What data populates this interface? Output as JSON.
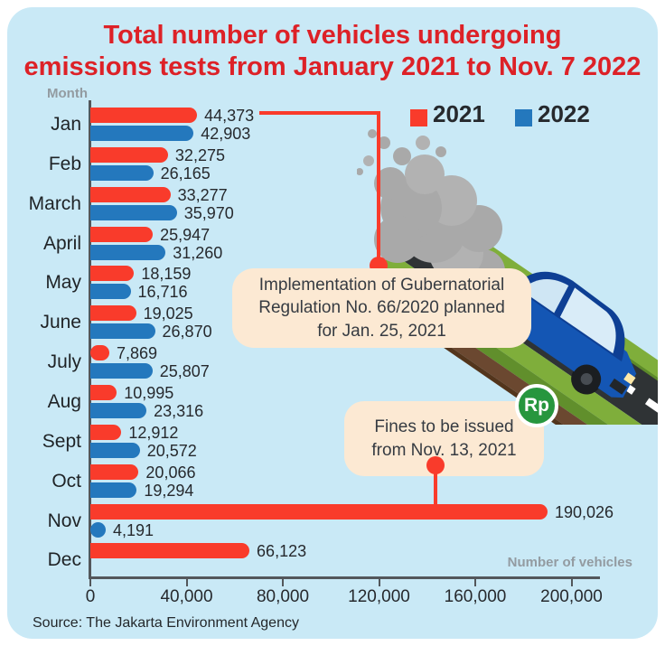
{
  "title": {
    "line1": "Total number of vehicles undergoing",
    "line2": "emissions tests from January 2021 to Nov. 7 2022"
  },
  "legend": {
    "items": [
      {
        "label": "2021",
        "color": "#f93b2b"
      },
      {
        "label": "2022",
        "color": "#2478bd"
      }
    ]
  },
  "axis": {
    "y_label": "Month",
    "x_label": "Number of vehicles",
    "ticks": [
      "0",
      "40,000",
      "80,000",
      "120,000",
      "160,000",
      "200,000"
    ]
  },
  "chart_data": {
    "type": "bar",
    "orientation": "horizontal",
    "title": "Total number of vehicles undergoing emissions tests from January 2021 to Nov. 7 2022",
    "xlabel": "Number of vehicles",
    "ylabel": "Month",
    "xlim": [
      0,
      200000
    ],
    "grid": false,
    "legend_position": "top-right",
    "categories": [
      "Jan",
      "Feb",
      "March",
      "April",
      "May",
      "June",
      "July",
      "Aug",
      "Sept",
      "Oct",
      "Nov",
      "Dec"
    ],
    "series": [
      {
        "name": "2021",
        "color": "#f93b2b",
        "values": [
          44373,
          32275,
          33277,
          25947,
          18159,
          19025,
          7869,
          10995,
          12912,
          20066,
          190026,
          66123
        ]
      },
      {
        "name": "2022",
        "color": "#2478bd",
        "values": [
          42903,
          26165,
          35970,
          31260,
          16716,
          26870,
          25807,
          23316,
          20572,
          19294,
          4191,
          null
        ]
      }
    ]
  },
  "annotations": {
    "regulation": {
      "text": "Implementation of Gubernatorial\nRegulation No. 66/2020 planned\nfor Jan. 25, 2021"
    },
    "fines": {
      "text": "Fines to be issued\nfrom Nov. 13, 2021"
    }
  },
  "badge": {
    "label": "Rp",
    "color": "#27963e"
  },
  "source": "Source: The Jakarta Environment Agency",
  "colors": {
    "panel_bg": "#c9e9f6",
    "title_red": "#dd2127",
    "bar_2021": "#f93b2b",
    "bar_2022": "#2478bd",
    "annotation_bg": "#fce9d3",
    "axis": "#53575b",
    "smoke": "#a9a9a9"
  }
}
